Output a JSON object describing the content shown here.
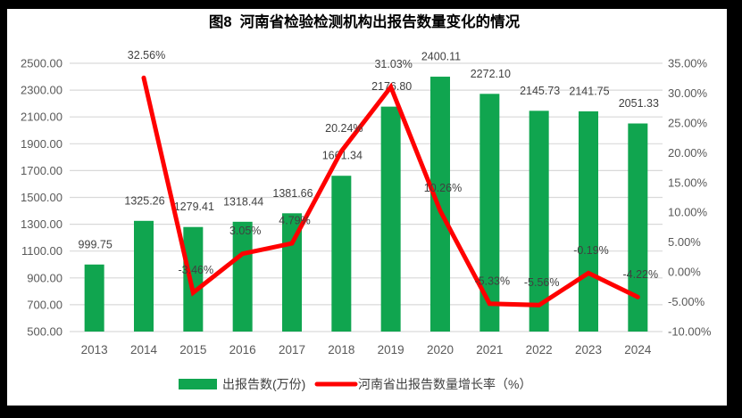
{
  "title": "图8  河南省检验检测机构出报告数量变化的情况",
  "legend": {
    "bars_label": "出报告数(万份)",
    "line_label": "河南省出报告数量增长率（%）"
  },
  "colors": {
    "frame": "#000000",
    "panel": "#FFFFFF",
    "bar": "#10A54F",
    "line": "#FF0000",
    "grid": "#D9D9D9",
    "axis_text": "#595959",
    "data_label_text": "#404040",
    "title_text": "#000000",
    "legend_text": "#404040"
  },
  "chart_data": {
    "type": "bar+line combo",
    "title": "图8  河南省检验检测机构出报告数量变化的情况",
    "categories": [
      "2013",
      "2014",
      "2015",
      "2016",
      "2017",
      "2018",
      "2019",
      "2020",
      "2021",
      "2022",
      "2023",
      "2024"
    ],
    "series": [
      {
        "name": "出报告数(万份)",
        "type": "bar",
        "axis": "left",
        "values": [
          999.75,
          1325.26,
          1279.41,
          1318.44,
          1381.66,
          1661.34,
          2176.8,
          2400.11,
          2272.1,
          2145.73,
          2141.75,
          2051.33
        ],
        "labels": [
          "999.75",
          "1325.26",
          "1279.41",
          "1318.44",
          "1381.66",
          "1661.34",
          "2176.80",
          "2400.11",
          "2272.10",
          "2145.73",
          "2141.75",
          "2051.33"
        ]
      },
      {
        "name": "河南省出报告数量增长率（%）",
        "type": "line",
        "axis": "right",
        "values": [
          null,
          32.56,
          -3.46,
          3.05,
          4.79,
          20.24,
          31.03,
          10.26,
          -5.33,
          -5.56,
          -0.19,
          -4.22
        ],
        "labels": [
          null,
          "32.56%",
          "-3.46%",
          "3.05%",
          "4.79%",
          "20.24%",
          "31.03%",
          "10.26%",
          "-5.33%",
          "-5.56%",
          "-0.19%",
          "-4.22%"
        ]
      }
    ],
    "left_axis": {
      "min": 500,
      "max": 2500,
      "step": 200,
      "ticks": [
        "2500.00",
        "2300.00",
        "2100.00",
        "1900.00",
        "1700.00",
        "1500.00",
        "1300.00",
        "1100.00",
        "900.00",
        "700.00",
        "500.00"
      ]
    },
    "right_axis": {
      "min": -10,
      "max": 35,
      "step": 5,
      "ticks": [
        "35.00%",
        "30.00%",
        "25.00%",
        "20.00%",
        "15.00%",
        "10.00%",
        "5.00%",
        "0.00%",
        "-5.00%",
        "-10.00%"
      ]
    },
    "grid": true,
    "legend_position": "bottom"
  }
}
